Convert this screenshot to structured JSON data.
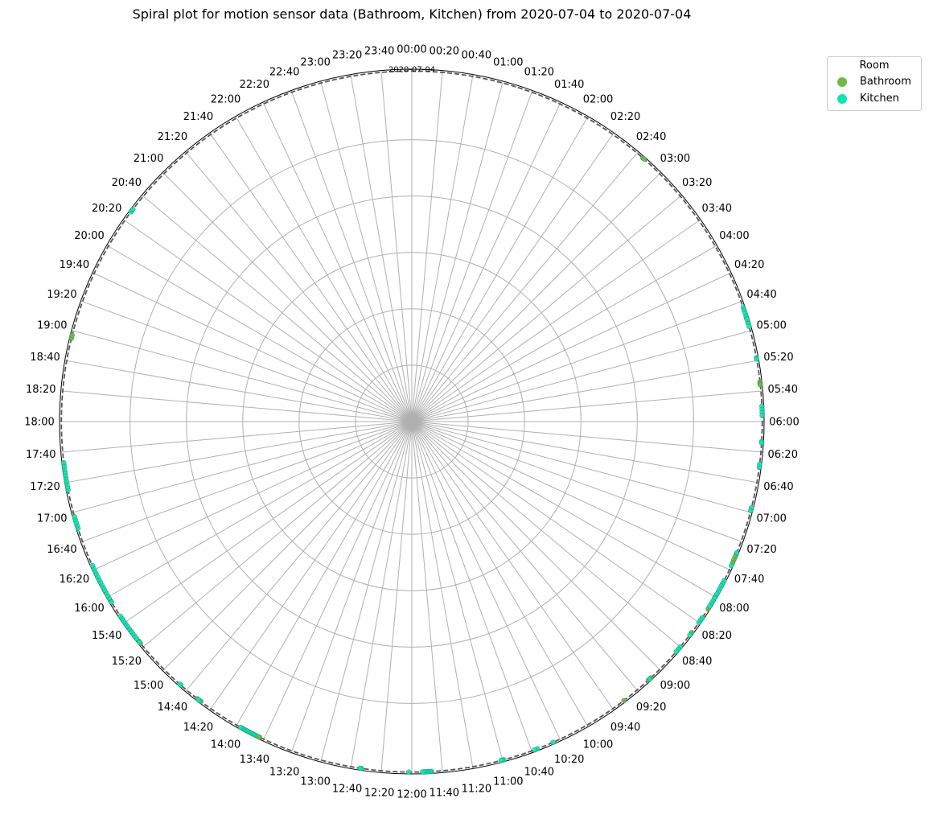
{
  "chart_data": {
    "type": "scatter",
    "projection": "polar",
    "title": "Spiral plot for motion sensor data (Bathroom, Kitchen) from 2020-07-04 to 2020-07-04",
    "theta_direction": "clockwise",
    "theta_zero": "top",
    "theta_ticks": [
      "00:00",
      "00:20",
      "00:40",
      "01:00",
      "01:20",
      "01:40",
      "02:00",
      "02:20",
      "02:40",
      "03:00",
      "03:20",
      "03:40",
      "04:00",
      "04:20",
      "04:40",
      "05:00",
      "05:20",
      "05:40",
      "06:00",
      "06:20",
      "06:40",
      "07:00",
      "07:20",
      "07:40",
      "08:00",
      "08:20",
      "08:40",
      "09:00",
      "09:20",
      "09:40",
      "10:00",
      "10:20",
      "10:40",
      "11:00",
      "11:20",
      "11:40",
      "12:00",
      "12:20",
      "12:40",
      "13:00",
      "13:20",
      "13:40",
      "14:00",
      "14:20",
      "14:40",
      "15:00",
      "15:20",
      "15:40",
      "16:00",
      "16:20",
      "16:40",
      "17:00",
      "17:20",
      "17:40",
      "18:00",
      "18:20",
      "18:40",
      "19:00",
      "19:20",
      "19:40",
      "20:00",
      "20:20",
      "20:40",
      "21:00",
      "21:20",
      "21:40",
      "22:00",
      "22:20",
      "22:40",
      "23:00",
      "23:20",
      "23:40"
    ],
    "radial_gridlines": 5,
    "day_ring_label": "2020-07-04",
    "grid": true,
    "legend": {
      "title": "Room",
      "placement": "upper-right-outside"
    },
    "series": [
      {
        "name": "Bathroom",
        "color": "#6dbb45",
        "times": [
          "02:45",
          "02:46",
          "18:55",
          "18:57",
          "20:28",
          "04:51",
          "04:54",
          "05:34",
          "05:35",
          "05:36",
          "07:29",
          "07:31",
          "07:33",
          "07:35",
          "08:09",
          "08:28",
          "09:08",
          "09:10",
          "09:31",
          "15:23",
          "15:25",
          "15:57",
          "13:43",
          "13:44",
          "14:28",
          "14:31"
        ]
      },
      {
        "name": "Kitchen",
        "color": "#12e3b5",
        "times": [
          "20:27",
          "20:29",
          "04:44",
          "04:46",
          "04:48",
          "04:50",
          "04:52",
          "04:55",
          "04:57",
          "05:18",
          "05:19",
          "05:50",
          "05:52",
          "05:54",
          "05:56",
          "06:13",
          "06:14",
          "06:28",
          "06:30",
          "06:57",
          "06:59",
          "07:28",
          "07:37",
          "07:48",
          "07:50",
          "07:52",
          "07:54",
          "07:56",
          "07:58",
          "08:00",
          "08:01",
          "08:03",
          "08:05",
          "08:07",
          "08:16",
          "08:18",
          "08:20",
          "08:30",
          "08:40",
          "08:42",
          "08:44",
          "09:09",
          "10:25",
          "10:36",
          "10:38",
          "10:59",
          "11:00",
          "11:01",
          "11:47",
          "11:48",
          "11:49",
          "11:50",
          "11:51",
          "11:52",
          "11:53",
          "12:02",
          "12:33",
          "12:34",
          "13:46",
          "13:47",
          "13:48",
          "13:49",
          "13:50",
          "13:51",
          "13:52",
          "13:53",
          "13:54",
          "13:55",
          "13:56",
          "13:57",
          "14:29",
          "14:30",
          "14:45",
          "14:46",
          "15:24",
          "15:27",
          "15:29",
          "15:31",
          "15:33",
          "15:35",
          "15:37",
          "15:39",
          "15:41",
          "15:43",
          "15:45",
          "15:56",
          "15:59",
          "16:01",
          "16:03",
          "16:05",
          "16:07",
          "16:09",
          "16:11",
          "16:13",
          "16:15",
          "16:17",
          "16:19",
          "16:21",
          "16:23",
          "16:49",
          "16:51",
          "16:53",
          "16:55",
          "16:57",
          "17:15",
          "17:17",
          "17:19",
          "17:21",
          "17:23",
          "17:25",
          "17:27",
          "17:29",
          "17:31",
          "17:33"
        ]
      }
    ]
  }
}
